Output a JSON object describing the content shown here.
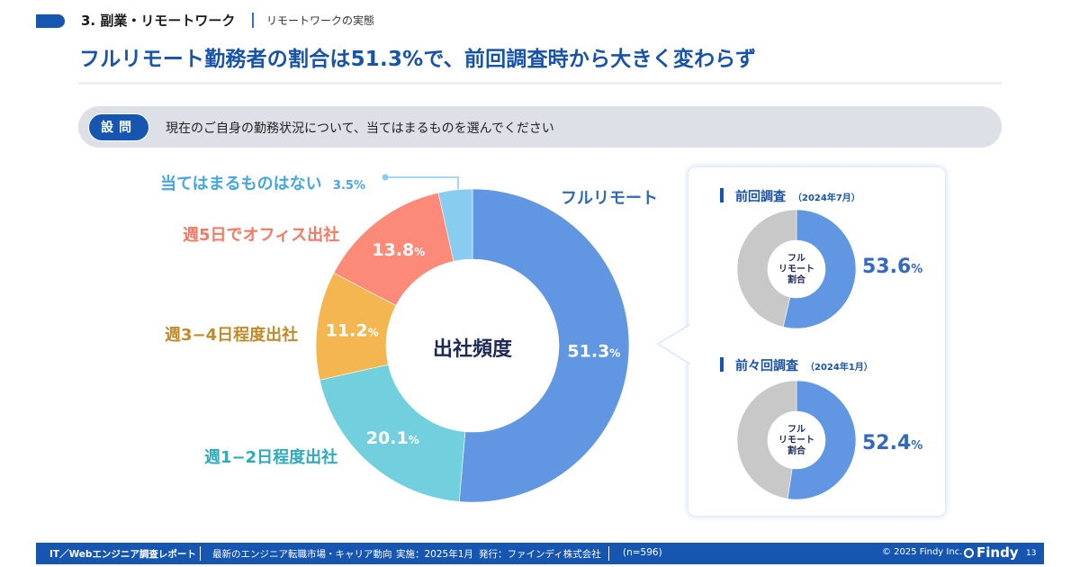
{
  "header": {
    "section_title": "3. 副業・リモートワーク",
    "section_subtitle": "リモートワークの実態",
    "headline": "フルリモート勤務者の割合は51.3%で、前回調査時から大きく変わらず"
  },
  "question": {
    "badge": "設問",
    "text": "現在のご自身の勤務状況について、当てはまるものを選んでください"
  },
  "chart_data": [
    {
      "type": "pie",
      "title": "出社頻度",
      "donut": true,
      "start": "top",
      "direction": "clockwise",
      "unit": "%",
      "categories": [
        "フルリモート",
        "週1−2日程度出社",
        "週3−4日程度出社",
        "週5日でオフィス出社",
        "当てはまるものはない"
      ],
      "values": [
        51.3,
        20.1,
        11.2,
        13.8,
        3.5
      ],
      "value_labels": [
        "51.3",
        "20.1",
        "11.2",
        "13.8",
        "3.5"
      ],
      "colors": [
        "#6096e2",
        "#72cfdd",
        "#f4b650",
        "#fb8b78",
        "#88ccf0"
      ],
      "label_colors": [
        "#2d68b8",
        "#2fa9bc",
        "#c08a2a",
        "#f27a63",
        "#45a6e0"
      ]
    },
    {
      "type": "pie",
      "title": "前回調査",
      "date": "（2024年7月）",
      "donut": true,
      "center_label": [
        "フル",
        "リモート",
        "割合"
      ],
      "categories": [
        "フルリモート",
        "その他"
      ],
      "values": [
        53.6,
        46.4
      ],
      "value_label": "53.6",
      "unit": "%",
      "colors": [
        "#6096e2",
        "#c8c8c8"
      ]
    },
    {
      "type": "pie",
      "title": "前々回調査",
      "date": "（2024年1月）",
      "donut": true,
      "center_label": [
        "フル",
        "リモート",
        "割合"
      ],
      "categories": [
        "フルリモート",
        "その他"
      ],
      "values": [
        52.4,
        47.6
      ],
      "value_label": "52.4",
      "unit": "%",
      "colors": [
        "#6096e2",
        "#c8c8c8"
      ]
    }
  ],
  "footer": {
    "report_name": "IT／Webエンジニア調査レポート",
    "subtitle": "最新のエンジニア転職市場・キャリア動向",
    "conducted": "実施：2025年1月",
    "publisher": "発行：ファインディ株式会社",
    "sample": "(n=596)",
    "copyright": "© 2025 Findy Inc.",
    "brand": "Findy",
    "page": "13"
  },
  "colors": {
    "brand": "#1656b0",
    "headline": "#1753a8"
  }
}
